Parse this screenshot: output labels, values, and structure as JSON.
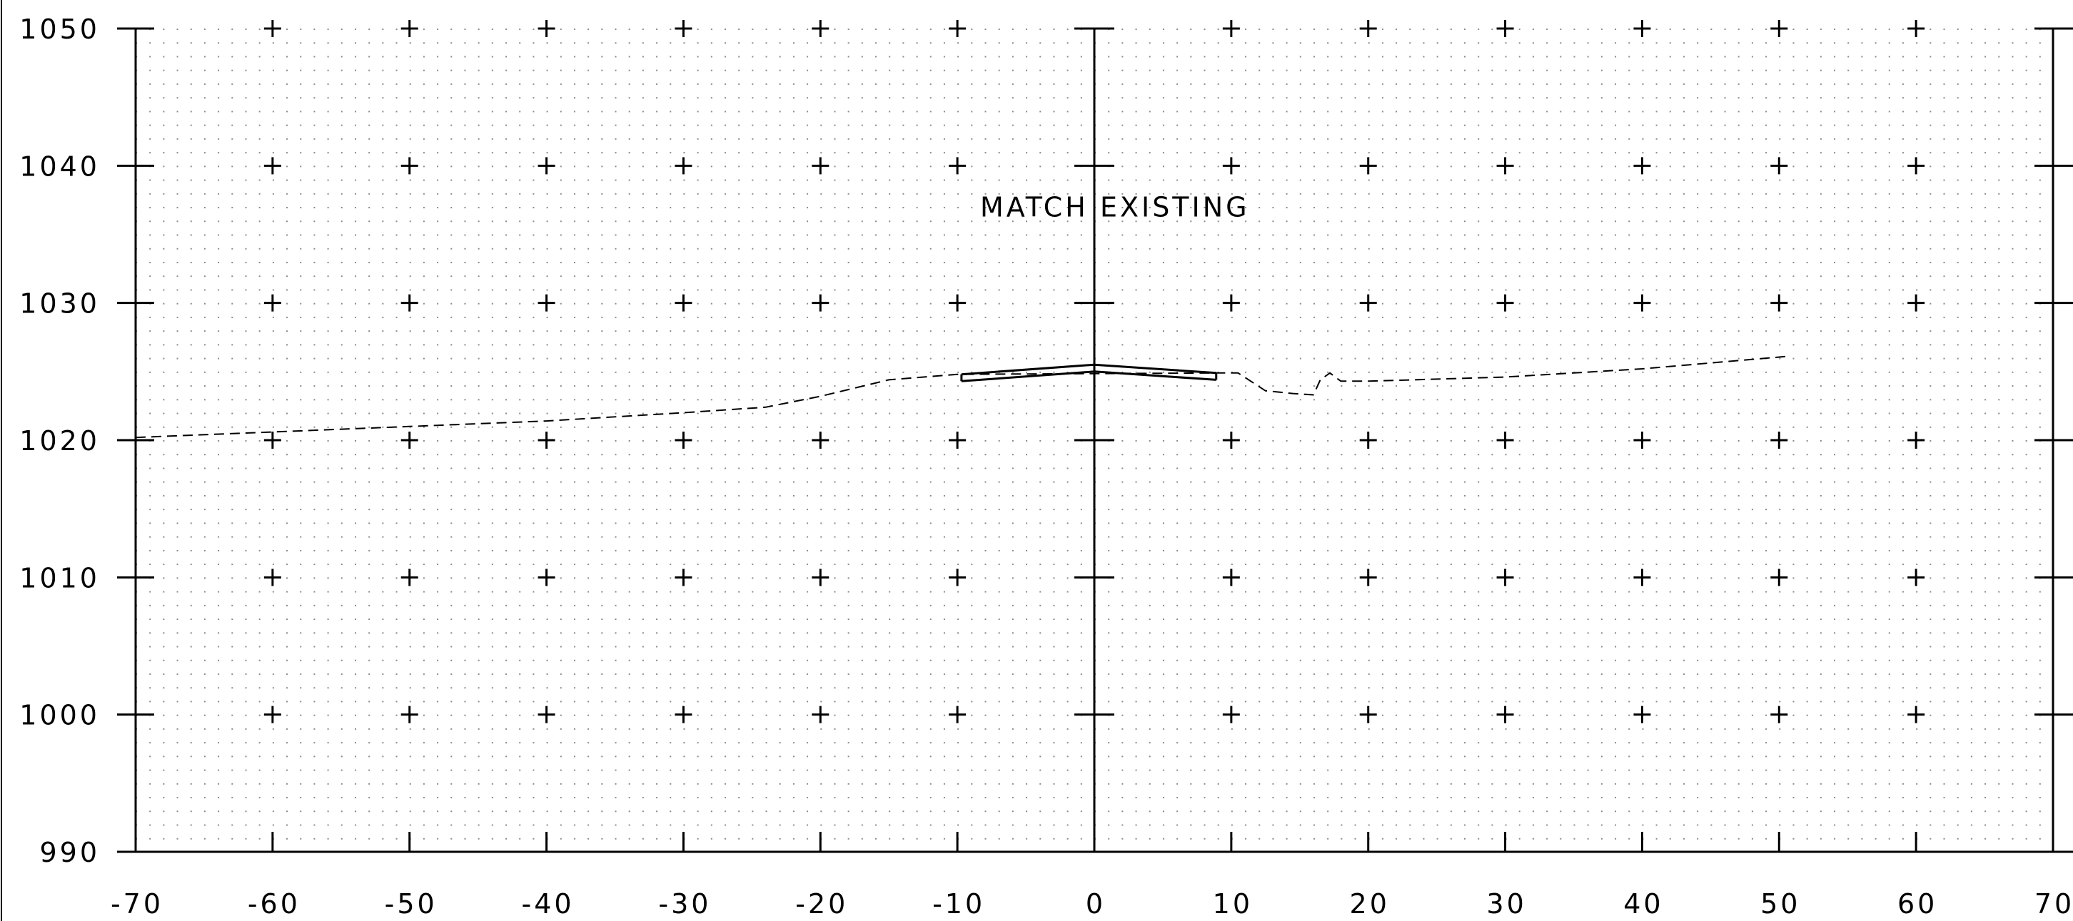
{
  "chart_data": {
    "type": "line",
    "x_range": [
      -70,
      70
    ],
    "y_range": [
      990,
      1050
    ],
    "x_ticks": [
      -70,
      -60,
      -50,
      -40,
      -30,
      -20,
      -10,
      0,
      10,
      20,
      30,
      40,
      50,
      60,
      70
    ],
    "y_ticks": [
      990,
      1000,
      1010,
      1020,
      1030,
      1040,
      1050
    ],
    "x_tick_labels": [
      "-70",
      "-60",
      "-50",
      "-40",
      "-30",
      "-20",
      "-10",
      "0",
      "10",
      "20",
      "30",
      "40",
      "50",
      "60",
      "70"
    ],
    "y_tick_labels": [
      "990",
      "1000",
      "1010",
      "1020",
      "1030",
      "1040",
      "1050"
    ],
    "grid": "dotted",
    "series": [
      {
        "style": "dashed",
        "x": [
          -70,
          -60,
          -50,
          -40,
          -30,
          -24,
          -20,
          -15,
          -10,
          9,
          10.5,
          12.5,
          14.5,
          16,
          16.5,
          17.2,
          18,
          20,
          30,
          40,
          50.5
        ],
        "y": [
          1020.2,
          1020.6,
          1021.0,
          1021.4,
          1022.0,
          1022.4,
          1023.2,
          1024.4,
          1024.8,
          1024.9,
          1024.9,
          1023.6,
          1023.4,
          1023.3,
          1024.4,
          1024.9,
          1024.3,
          1024.3,
          1024.6,
          1025.2,
          1026.1
        ]
      },
      {
        "style": "solid-top",
        "x": [
          -9.7,
          0,
          8.9
        ],
        "y": [
          1024.8,
          1025.5,
          1024.9
        ]
      },
      {
        "style": "solid-bottom",
        "x": [
          -9.7,
          0,
          8.9
        ],
        "y": [
          1024.3,
          1025.0,
          1024.4
        ]
      }
    ],
    "annotations": [
      {
        "text": "MATCH EXISTING",
        "x": 1.5,
        "y": 1036.3
      }
    ]
  }
}
